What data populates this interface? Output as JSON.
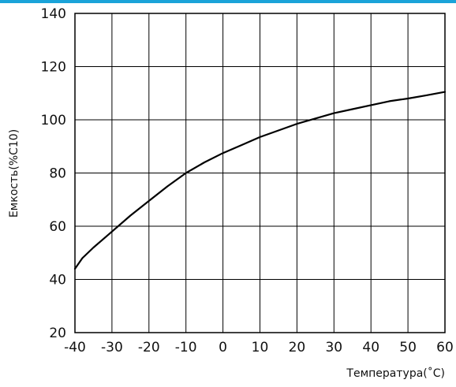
{
  "colors": {
    "accent_bar": "#1aa3d9",
    "grid": "#000000",
    "curve": "#000000"
  },
  "chart_data": {
    "type": "line",
    "xlabel": "Температура(˚C)",
    "ylabel": "Емкость(%C10)",
    "xlim": [
      -40,
      60
    ],
    "ylim": [
      20,
      140
    ],
    "x_ticks": [
      "-40",
      "-30",
      "-20",
      "-10",
      "0",
      "10",
      "20",
      "30",
      "40",
      "50",
      "60"
    ],
    "y_ticks": [
      "20",
      "40",
      "60",
      "80",
      "100",
      "120",
      "140"
    ],
    "grid": true,
    "series": [
      {
        "x": [
          -40,
          -38,
          -35,
          -30,
          -25,
          -20,
          -15,
          -10,
          -5,
          0,
          5,
          10,
          15,
          20,
          25,
          30,
          35,
          40,
          45,
          50,
          55,
          60
        ],
        "y": [
          44,
          48,
          52,
          58,
          64,
          69.5,
          75,
          80,
          84,
          87.5,
          90.5,
          93.5,
          96,
          98.5,
          100.5,
          102.5,
          104,
          105.5,
          107,
          108,
          109.2,
          110.5
        ]
      }
    ]
  }
}
